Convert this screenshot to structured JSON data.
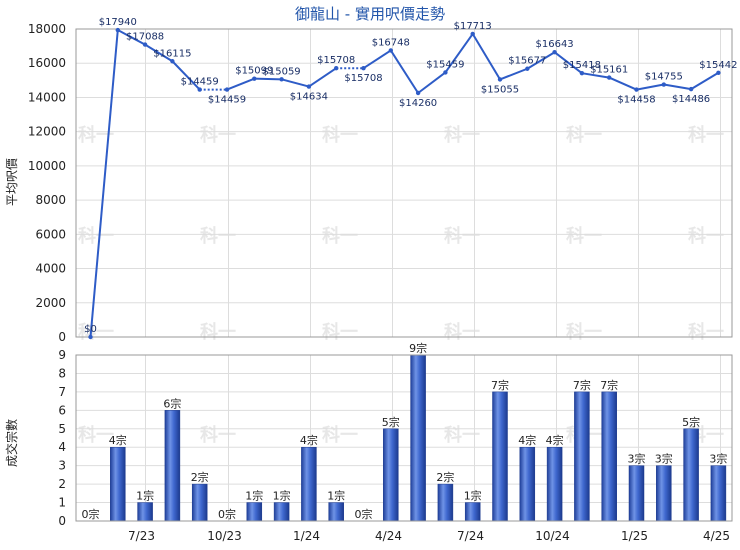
{
  "chart_data": [
    {
      "type": "line",
      "title": "御龍山 - 實用呎價走勢",
      "ylabel": "平均呎價",
      "ylim": [
        0,
        18000
      ],
      "yticks": [
        0,
        2000,
        4000,
        6000,
        8000,
        10000,
        12000,
        14000,
        16000,
        18000
      ],
      "grid": true,
      "series": [
        {
          "values": [
            0,
            17940,
            17088,
            16115,
            14459,
            14459,
            15099,
            15059,
            14634,
            15708,
            15708,
            16748,
            14260,
            15459,
            17713,
            15055,
            15677,
            16643,
            15418,
            15161,
            14458,
            14755,
            14486,
            15442
          ],
          "labels": [
            "$0",
            "$17940",
            "$17088",
            "$16115",
            "$14459",
            "$14459",
            "$15099",
            "$15059",
            "$14634",
            "$15708",
            "$15708",
            "$16748",
            "$14260",
            "$15459",
            "$17713",
            "$15055",
            "$15677",
            "$16643",
            "$15418",
            "$15161",
            "$14458",
            "$14755",
            "$14486",
            "$15442"
          ],
          "dashed_after_index": [
            4,
            9
          ],
          "color": "#2e5cc7"
        }
      ]
    },
    {
      "type": "bar",
      "ylabel": "成交宗數",
      "ylim": [
        0,
        9
      ],
      "yticks": [
        0,
        1,
        2,
        3,
        4,
        5,
        6,
        7,
        8,
        9
      ],
      "grid": true,
      "x_tick_labels": [
        "7/23",
        "10/23",
        "1/24",
        "4/24",
        "7/24",
        "10/24",
        "1/25",
        "4/25"
      ],
      "series": [
        {
          "values": [
            0,
            4,
            1,
            6,
            2,
            0,
            1,
            1,
            4,
            1,
            0,
            5,
            9,
            2,
            1,
            7,
            4,
            4,
            7,
            7,
            3,
            3,
            5,
            3
          ],
          "labels": [
            "0宗",
            "4宗",
            "1宗",
            "6宗",
            "2宗",
            "0宗",
            "1宗",
            "1宗",
            "4宗",
            "1宗",
            "0宗",
            "5宗",
            "9宗",
            "2宗",
            "1宗",
            "7宗",
            "4宗",
            "4宗",
            "7宗",
            "7宗",
            "3宗",
            "3宗",
            "5宗",
            "3宗"
          ],
          "color": "#3a64c8"
        }
      ]
    }
  ],
  "watermark": "科一"
}
